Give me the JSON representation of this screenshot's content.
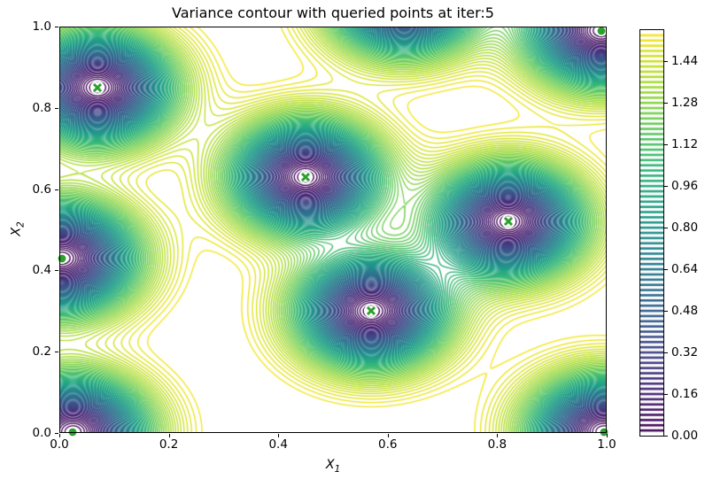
{
  "figure": {
    "title": "Variance contour with queried points at iter:5"
  },
  "chart_data": {
    "type": "contour",
    "title": "Variance contour with queried points at iter:5",
    "xlabel": {
      "base": "X",
      "sub": "1"
    },
    "ylabel": {
      "base": "X",
      "sub": "2"
    },
    "xlim": [
      0.0,
      1.0
    ],
    "ylim": [
      0.0,
      1.0
    ],
    "grid": false,
    "legend": false,
    "colormap": "viridis",
    "x_ticks": {
      "values": [
        0.0,
        0.2,
        0.4,
        0.6,
        0.8,
        1.0
      ],
      "labels": [
        "0.0",
        "0.2",
        "0.4",
        "0.6",
        "0.8",
        "1.0"
      ]
    },
    "y_ticks": {
      "values": [
        0.0,
        0.2,
        0.4,
        0.6,
        0.8,
        1.0
      ],
      "labels": [
        "0.0",
        "0.2",
        "0.4",
        "0.6",
        "0.8",
        "1.0"
      ]
    },
    "contour_levels": {
      "level_min": 0.02,
      "level_max": 1.54,
      "level_step": 0.02,
      "vmin": 0.0,
      "vmax": 1.56
    },
    "colorbar": {
      "orientation": "vertical",
      "tick_values": [
        0.0,
        0.16,
        0.32,
        0.48,
        0.64,
        0.8,
        0.96,
        1.12,
        1.28,
        1.44
      ],
      "tick_labels": [
        "0.00",
        "0.16",
        "0.32",
        "0.48",
        "0.64",
        "0.80",
        "0.96",
        "1.12",
        "1.28",
        "1.44"
      ]
    },
    "queried_points": {
      "marker": "x-in-circle",
      "color": "#2ca02c",
      "edge_color": "#ffffff",
      "points": [
        [
          0.07,
          0.85
        ],
        [
          0.45,
          0.63
        ],
        [
          0.82,
          0.52
        ],
        [
          0.57,
          0.3
        ]
      ]
    },
    "design_points": {
      "marker": "circle",
      "color": "#2ca02c",
      "edge_color": "#ffffff",
      "points": [
        [
          0.025,
          0.003
        ],
        [
          0.005,
          0.43
        ],
        [
          0.99,
          0.99
        ],
        [
          0.995,
          0.003
        ]
      ]
    },
    "variance_model": {
      "kernel": "rbf",
      "lengthscale": 0.13,
      "amplitude": 1.6,
      "offscreen_support_points": [
        [
          0.63,
          1.07
        ]
      ]
    },
    "colors": {
      "spine": "#000000",
      "background": "#ffffff",
      "marker_green": "#2ca02c"
    }
  }
}
